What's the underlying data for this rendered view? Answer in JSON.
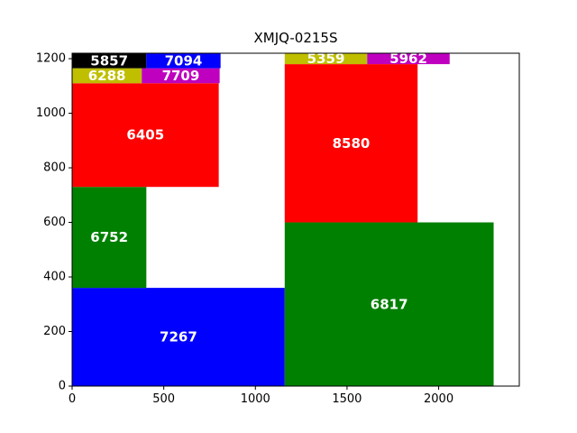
{
  "chart_data": {
    "type": "treemap",
    "title": "XMJQ-0215S",
    "xlim": [
      0,
      2440
    ],
    "ylim": [
      0,
      1220
    ],
    "x_ticks": [
      0,
      500,
      1000,
      1500,
      2000
    ],
    "y_ticks": [
      0,
      200,
      400,
      600,
      800,
      1000,
      1200
    ],
    "rects": [
      {
        "label": "7267",
        "x": 0,
        "y": 0,
        "w": 1160,
        "h": 360,
        "color": "#0000ff"
      },
      {
        "label": "6752",
        "x": 0,
        "y": 360,
        "w": 405,
        "h": 370,
        "color": "#008000"
      },
      {
        "label": "6405",
        "x": 0,
        "y": 730,
        "w": 800,
        "h": 380,
        "color": "#ff0000"
      },
      {
        "label": "6288",
        "x": 0,
        "y": 1110,
        "w": 380,
        "h": 55,
        "color": "#bfbf00"
      },
      {
        "label": "7709",
        "x": 380,
        "y": 1110,
        "w": 425,
        "h": 55,
        "color": "#bf00bf"
      },
      {
        "label": "5857",
        "x": 0,
        "y": 1165,
        "w": 405,
        "h": 55,
        "color": "#000000"
      },
      {
        "label": "7094",
        "x": 405,
        "y": 1165,
        "w": 405,
        "h": 55,
        "color": "#0000ff"
      },
      {
        "label": "6817",
        "x": 1160,
        "y": 0,
        "w": 1140,
        "h": 600,
        "color": "#008000"
      },
      {
        "label": "8580",
        "x": 1160,
        "y": 600,
        "w": 725,
        "h": 580,
        "color": "#ff0000"
      },
      {
        "label": "5359",
        "x": 1160,
        "y": 1180,
        "w": 450,
        "h": 40,
        "color": "#bfbf00"
      },
      {
        "label": "5962",
        "x": 1610,
        "y": 1180,
        "w": 450,
        "h": 40,
        "color": "#bf00bf"
      }
    ]
  }
}
